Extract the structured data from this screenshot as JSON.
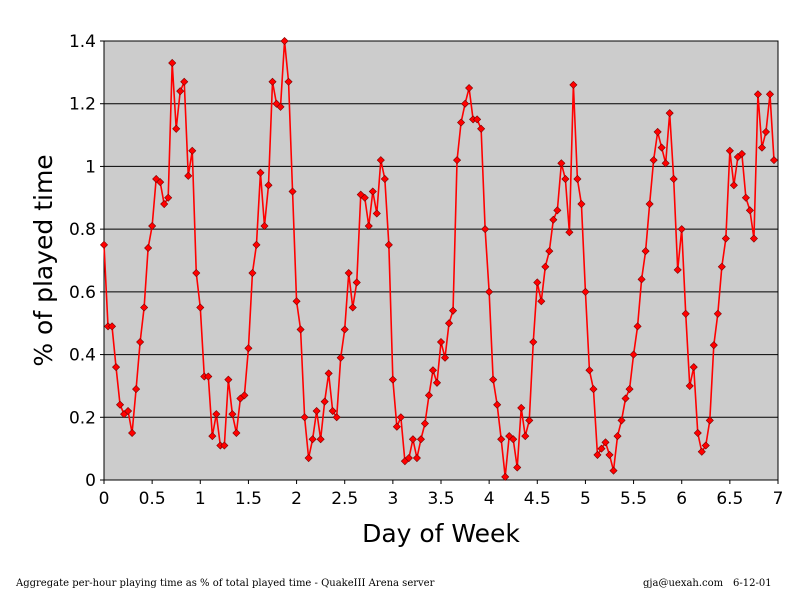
{
  "chart_data": {
    "type": "line",
    "xlabel": "Day of Week",
    "ylabel": "% of played time",
    "xlim": [
      0,
      7
    ],
    "ylim": [
      0,
      1.4
    ],
    "x_ticks": [
      "0",
      "0.5",
      "1",
      "1.5",
      "2",
      "2.5",
      "3",
      "3.5",
      "4",
      "4.5",
      "5",
      "5.5",
      "6",
      "6.5",
      "7"
    ],
    "y_ticks": [
      "0",
      "0.2",
      "0.4",
      "0.6",
      "0.8",
      "1",
      "1.2",
      "1.4"
    ],
    "grid": "horizontal",
    "background_color": "#cccccc",
    "series": [
      {
        "color": "#ff0000",
        "marker": "diamond",
        "x_step": 0.04166667,
        "values": [
          0.75,
          0.49,
          0.49,
          0.36,
          0.24,
          0.21,
          0.22,
          0.15,
          0.29,
          0.44,
          0.55,
          0.74,
          0.81,
          0.96,
          0.95,
          0.88,
          0.9,
          1.33,
          1.12,
          1.24,
          1.27,
          0.97,
          1.05,
          0.66,
          0.55,
          0.33,
          0.33,
          0.14,
          0.21,
          0.11,
          0.11,
          0.32,
          0.21,
          0.15,
          0.26,
          0.27,
          0.42,
          0.66,
          0.75,
          0.98,
          0.81,
          0.94,
          1.27,
          1.2,
          1.19,
          1.4,
          1.27,
          0.92,
          0.57,
          0.48,
          0.2,
          0.07,
          0.13,
          0.22,
          0.13,
          0.25,
          0.34,
          0.22,
          0.2,
          0.39,
          0.48,
          0.66,
          0.55,
          0.63,
          0.91,
          0.9,
          0.81,
          0.92,
          0.85,
          1.02,
          0.96,
          0.75,
          0.32,
          0.17,
          0.2,
          0.06,
          0.07,
          0.13,
          0.07,
          0.13,
          0.18,
          0.27,
          0.35,
          0.31,
          0.44,
          0.39,
          0.5,
          0.54,
          1.02,
          1.14,
          1.2,
          1.25,
          1.15,
          1.15,
          1.12,
          0.8,
          0.6,
          0.32,
          0.24,
          0.13,
          0.01,
          0.14,
          0.13,
          0.04,
          0.23,
          0.14,
          0.19,
          0.44,
          0.63,
          0.57,
          0.68,
          0.73,
          0.83,
          0.86,
          1.01,
          0.96,
          0.79,
          1.26,
          0.96,
          0.88,
          0.6,
          0.35,
          0.29,
          0.08,
          0.1,
          0.12,
          0.08,
          0.03,
          0.14,
          0.19,
          0.26,
          0.29,
          0.4,
          0.49,
          0.64,
          0.73,
          0.88,
          1.02,
          1.11,
          1.06,
          1.01,
          1.17,
          0.96,
          0.67,
          0.8,
          0.53,
          0.3,
          0.36,
          0.15,
          0.09,
          0.11,
          0.19,
          0.43,
          0.53,
          0.68,
          0.77,
          1.05,
          0.94,
          1.03,
          1.04,
          0.9,
          0.86,
          0.77,
          1.23,
          1.06,
          1.11,
          1.23,
          1.02
        ]
      }
    ]
  },
  "footer": {
    "caption": "Aggregate per-hour playing time as % of total played time - QuakeIII Arena server",
    "email": "gja@uexah.com",
    "date": "6-12-01"
  }
}
